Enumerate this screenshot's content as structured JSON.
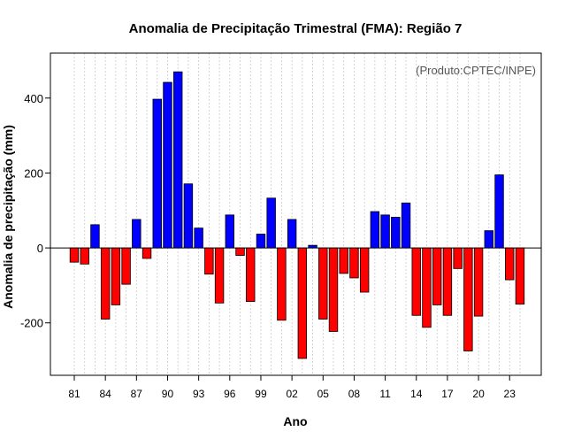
{
  "chart_data": {
    "type": "bar",
    "title": "Anomalia de Precipitação Trimestral (FMA): Região 7",
    "xlabel": "Ano",
    "ylabel": "Anomalia de precipitação (mm)",
    "annotation": "(Produto:CPTEC/INPE)",
    "ylim": [
      -340,
      520
    ],
    "yticks": [
      -200,
      0,
      200,
      400
    ],
    "xtick_labels": [
      "81",
      "84",
      "87",
      "90",
      "93",
      "96",
      "99",
      "02",
      "05",
      "08",
      "11",
      "14",
      "17",
      "20",
      "23"
    ],
    "positive_color": "#0000ff",
    "negative_color": "#ff0000",
    "grid": true,
    "years": [
      1981,
      1982,
      1983,
      1984,
      1985,
      1986,
      1987,
      1988,
      1989,
      1990,
      1991,
      1992,
      1993,
      1994,
      1995,
      1996,
      1997,
      1998,
      1999,
      2000,
      2001,
      2002,
      2003,
      2004,
      2005,
      2006,
      2007,
      2008,
      2009,
      2010,
      2011,
      2012,
      2013,
      2014,
      2015,
      2016,
      2017,
      2018,
      2019,
      2020,
      2021,
      2022,
      2023,
      2024
    ],
    "values": [
      -38,
      -43,
      62,
      -190,
      -152,
      -97,
      76,
      -28,
      397,
      442,
      470,
      171,
      53,
      -70,
      -147,
      88,
      -20,
      -143,
      37,
      133,
      -193,
      76,
      -295,
      7,
      -190,
      -223,
      -68,
      -80,
      -118,
      97,
      88,
      82,
      120,
      -180,
      -212,
      -152,
      -180,
      -55,
      -275,
      -182,
      46,
      195,
      -85,
      -150
    ]
  }
}
